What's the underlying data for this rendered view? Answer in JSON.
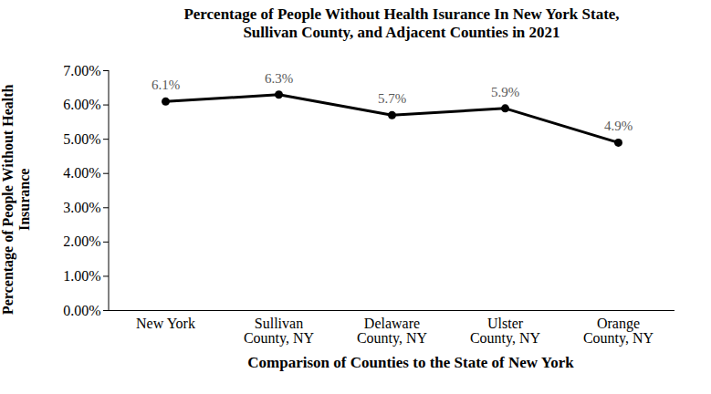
{
  "chart_data": {
    "type": "line",
    "title": "Percentage of People Without Health Isurance In New York State, Sullivan County, and Adjacent Counties in 2021",
    "x_label": "Comparison of Counties to the State of New York",
    "y_label": "Percentage of People Without Health Insurance",
    "categories": [
      "New York",
      "Sullivan County, NY",
      "Delaware County, NY",
      "Ulster County, NY",
      "Orange County, NY"
    ],
    "values": [
      6.1,
      6.3,
      5.7,
      5.9,
      4.9
    ],
    "value_labels": [
      "6.1%",
      "6.3%",
      "5.7%",
      "5.9%",
      "4.9%"
    ],
    "data_labels": true,
    "color": "#000000",
    "marker": "circle",
    "grid": false,
    "ylim": [
      0,
      7
    ],
    "yticks": [
      {
        "value": 0,
        "label": "0.00%"
      },
      {
        "value": 1,
        "label": "1.00%"
      },
      {
        "value": 2,
        "label": "2.00%"
      },
      {
        "value": 3,
        "label": "3.00%"
      },
      {
        "value": 4,
        "label": "4.00%"
      },
      {
        "value": 5,
        "label": "5.00%"
      },
      {
        "value": 6,
        "label": "6.00%"
      },
      {
        "value": 7,
        "label": "7.00%"
      }
    ]
  }
}
